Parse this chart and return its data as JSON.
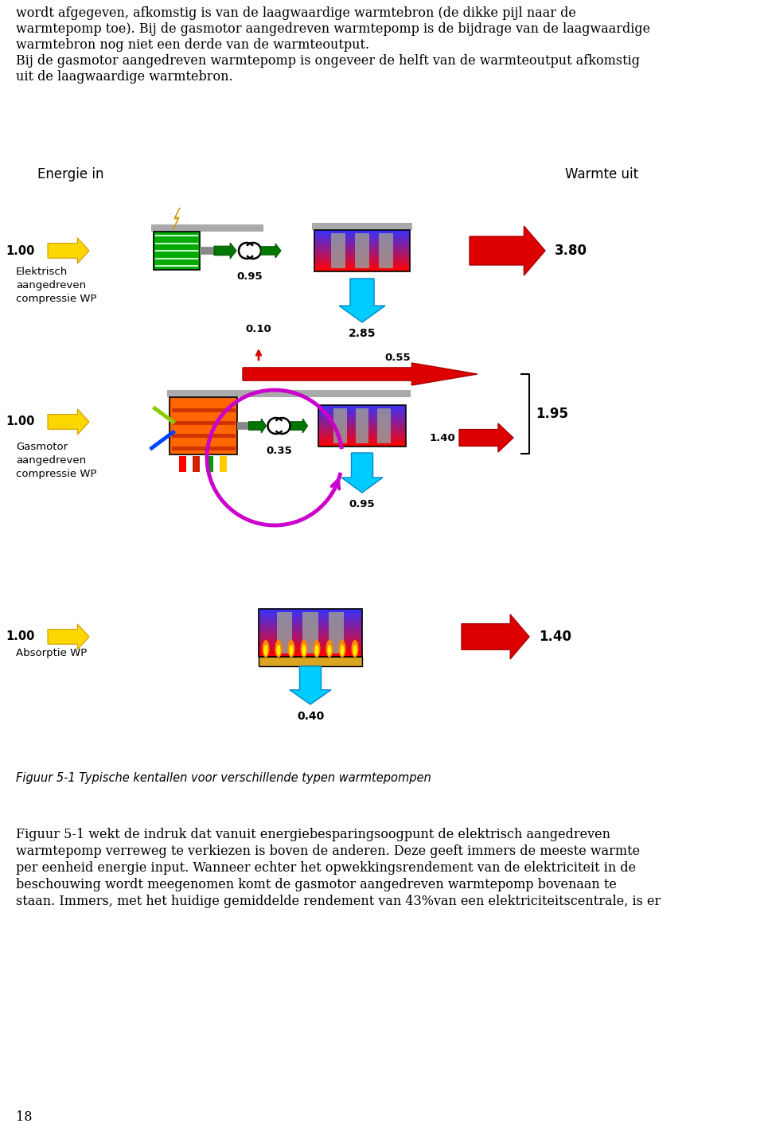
{
  "background_color": "#ffffff",
  "page_width": 9.6,
  "page_height": 14.26,
  "top_text_lines": [
    "wordt afgegeven, afkomstig is van de laagwaardige warmtebron (de dikke pijl naar de",
    "warmtepomp toe). Bij de gasmotor aangedreven warmtepomp is de bijdrage van de laagwaardige",
    "warmtebron nog niet een derde van de warmteoutput.",
    "Bij de gasmotor aangedreven warmtepomp is ongeveer de helft van de warmteoutput afkomstig",
    "uit de laagwaardige warmtebron."
  ],
  "bottom_text_lines": [
    "Figuur 5-1 wekt de indruk dat vanuit energiebesparingsoogpunt de elektrisch aangedreven",
    "warmtepomp verreweg te verkiezen is boven de anderen. Deze geeft immers de meeste warmte",
    "per eenheid energie input. Wanneer echter het opwekkingsrendement van de elektriciteit in de",
    "beschouwing wordt meegenomen komt de gasmotor aangedreven warmtepomp bovenaan te",
    "staan. Immers, met het huidige gemiddelde rendement van 43%van een elektriciteitscentrale, is er"
  ],
  "figure_caption": "Figuur 5-1 Typische kentallen voor verschillende typen warmtepompen",
  "page_number": "18",
  "header_energie_in": "Energie in",
  "header_warmte_uit": "Warmte uit",
  "row1_label": [
    "Elektrisch",
    "aangedreven",
    "compressie WP"
  ],
  "row2_label": [
    "Gasmotor",
    "aangedreven",
    "compressie WP"
  ],
  "row3_label": [
    "Absorptie WP"
  ],
  "row1_input_val": "1.00",
  "row1_compress_val": "0.95",
  "row1_source_val": "2.85",
  "row1_output_val": "3.80",
  "row2_input_val": "1.00",
  "row2_engine_val": "0.10",
  "row2_compress_in_val": "0.35",
  "row2_compress_out_val": "0.55",
  "row2_source_val": "0.95",
  "row2_output_top_val": "1.95",
  "row2_output_bot_val": "1.40",
  "row3_input_val": "1.00",
  "row3_source_val": "0.40",
  "row3_output_val": "1.40"
}
